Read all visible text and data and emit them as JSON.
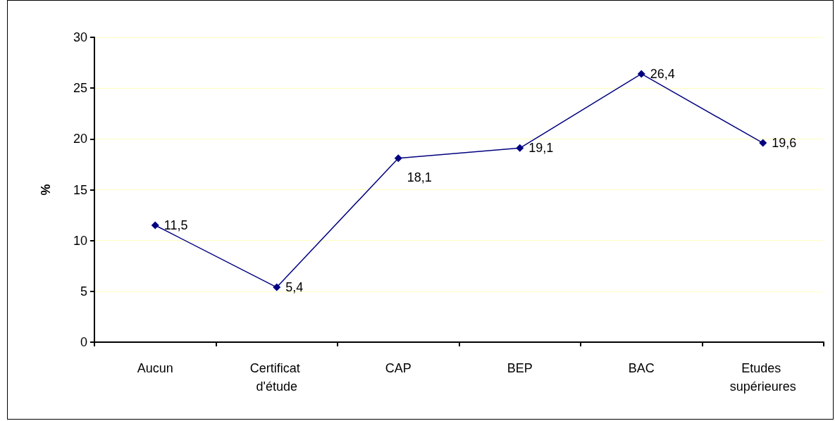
{
  "chart_data": {
    "type": "line",
    "ylabel": "%",
    "categories": [
      "Aucun",
      "Certificat d'étude",
      "CAP",
      "BEP",
      "BAC",
      "Etudes supérieures"
    ],
    "series": [
      {
        "color": "#000080",
        "values": [
          11.5,
          5.4,
          18.1,
          19.1,
          26.4,
          19.6
        ],
        "value_labels": [
          "11,5",
          "5,4",
          "18,1",
          "19,1",
          "26,4",
          "19,6"
        ]
      }
    ],
    "ylim": [
      0,
      30
    ],
    "yticks": [
      0,
      5,
      10,
      15,
      20,
      25,
      30
    ],
    "grid": "y",
    "marker": "diamond",
    "line_style": "solid"
  }
}
